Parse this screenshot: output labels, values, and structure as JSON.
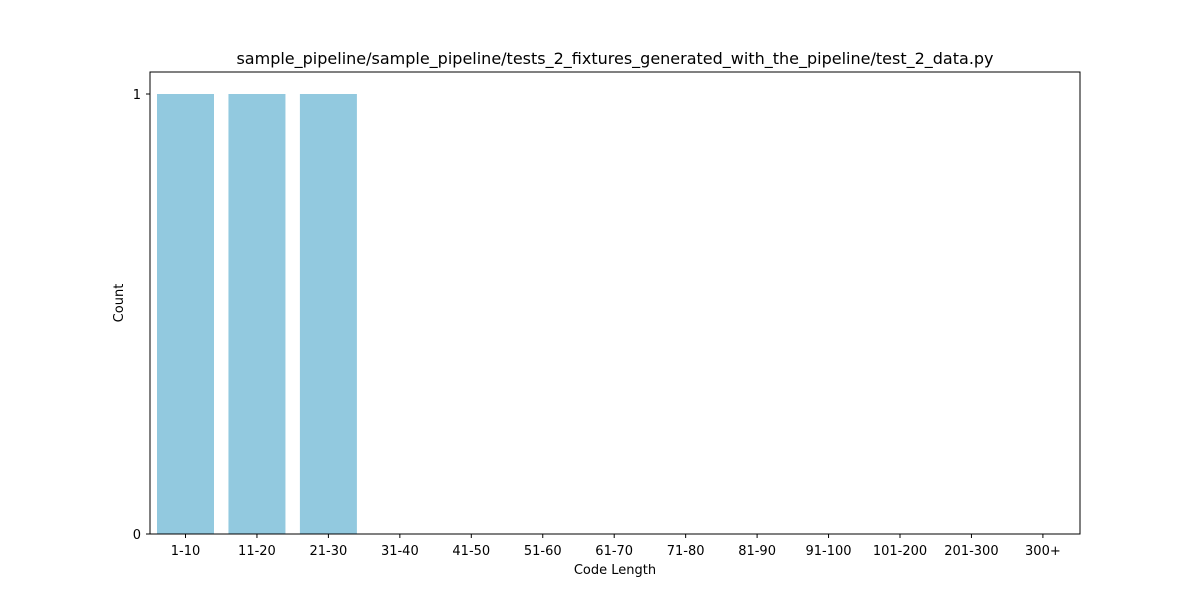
{
  "chart_data": {
    "type": "bar",
    "title": "sample_pipeline/sample_pipeline/tests_2_fixtures_generated_with_the_pipeline/test_2_data.py",
    "xlabel": "Code Length",
    "ylabel": "Count",
    "categories": [
      "1-10",
      "11-20",
      "21-30",
      "31-40",
      "41-50",
      "51-60",
      "61-70",
      "71-80",
      "81-90",
      "91-100",
      "101-200",
      "201-300",
      "300+"
    ],
    "values": [
      1,
      1,
      1,
      0,
      0,
      0,
      0,
      0,
      0,
      0,
      0,
      0,
      0
    ],
    "ylim": [
      0,
      1
    ],
    "yticks": [
      "0",
      "1"
    ],
    "bar_color": "#92c9df",
    "grid": false,
    "legend": "none"
  }
}
